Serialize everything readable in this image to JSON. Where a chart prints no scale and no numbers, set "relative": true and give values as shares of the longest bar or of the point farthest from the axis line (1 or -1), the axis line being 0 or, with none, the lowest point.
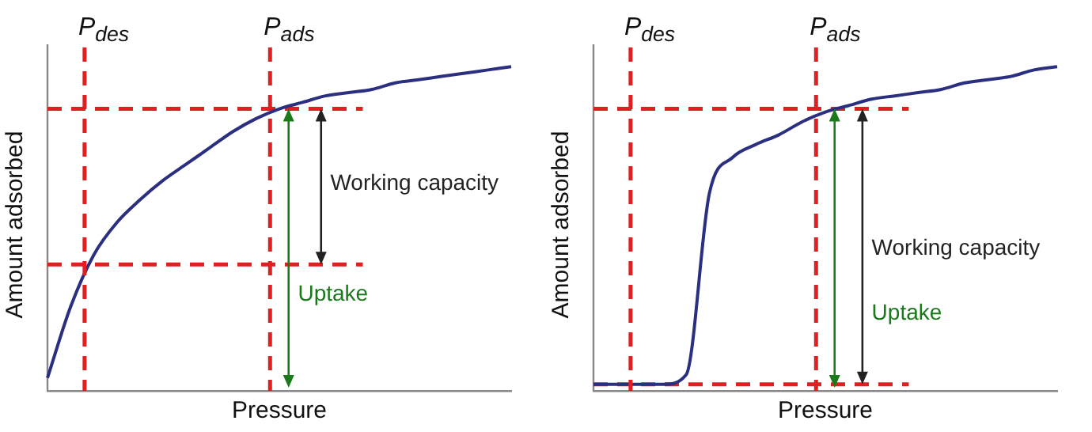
{
  "chart_data": [
    {
      "type": "line",
      "relative": true,
      "xlabel": "Pressure",
      "ylabel": "Amount adsorbed",
      "grid": false,
      "legend": false,
      "marker": "none",
      "line_style": "solid",
      "categories": [
        null,
        null,
        null,
        null,
        null,
        null,
        null,
        null,
        null,
        null,
        null,
        null,
        null,
        null,
        null,
        null,
        null,
        null,
        null,
        null,
        null
      ],
      "series": [
        {
          "color": "#2b2f80",
          "values": [
            0.04,
            0.26,
            0.42,
            0.52,
            0.59,
            0.65,
            0.7,
            0.75,
            0.8,
            0.84,
            0.87,
            0.89,
            0.91,
            0.92,
            0.93,
            0.95,
            0.96,
            0.97,
            0.98,
            0.99,
            1
          ]
        }
      ],
      "ref_lines": [
        {
          "axis": "y",
          "value": 0.39,
          "color": "#e02020",
          "line_style": "dashed"
        },
        {
          "axis": "y",
          "value": 0.87,
          "color": "#e02020",
          "line_style": "dashed"
        }
      ],
      "annotations": [
        "P$_{des}$",
        "P$_{ads}$",
        "Working capacity",
        "Uptake"
      ]
    },
    {
      "type": "line",
      "relative": true,
      "xlabel": "Pressure",
      "ylabel": "Amount adsorbed",
      "grid": false,
      "legend": false,
      "marker": "none",
      "line_style": "solid",
      "categories": [
        null,
        null,
        null,
        null,
        null,
        null,
        null,
        null,
        null,
        null,
        null,
        null,
        null,
        null,
        null,
        null,
        null,
        null,
        null,
        null,
        null
      ],
      "series": [
        {
          "color": "#2b2f80",
          "values": [
            0.02,
            0.02,
            0.02,
            0.02,
            0.05,
            0.61,
            0.72,
            0.76,
            0.79,
            0.83,
            0.86,
            0.88,
            0.9,
            0.91,
            0.92,
            0.93,
            0.95,
            0.96,
            0.97,
            0.99,
            1
          ]
        }
      ],
      "ref_lines": [
        {
          "axis": "y",
          "value": 0.02,
          "color": "#e02020",
          "line_style": "dashed"
        },
        {
          "axis": "y",
          "value": 0.87,
          "color": "#e02020",
          "line_style": "dashed"
        }
      ],
      "annotations": [
        "P$_{des}$",
        "P$_{ads}$",
        "Working capacity",
        "Uptake"
      ]
    }
  ]
}
